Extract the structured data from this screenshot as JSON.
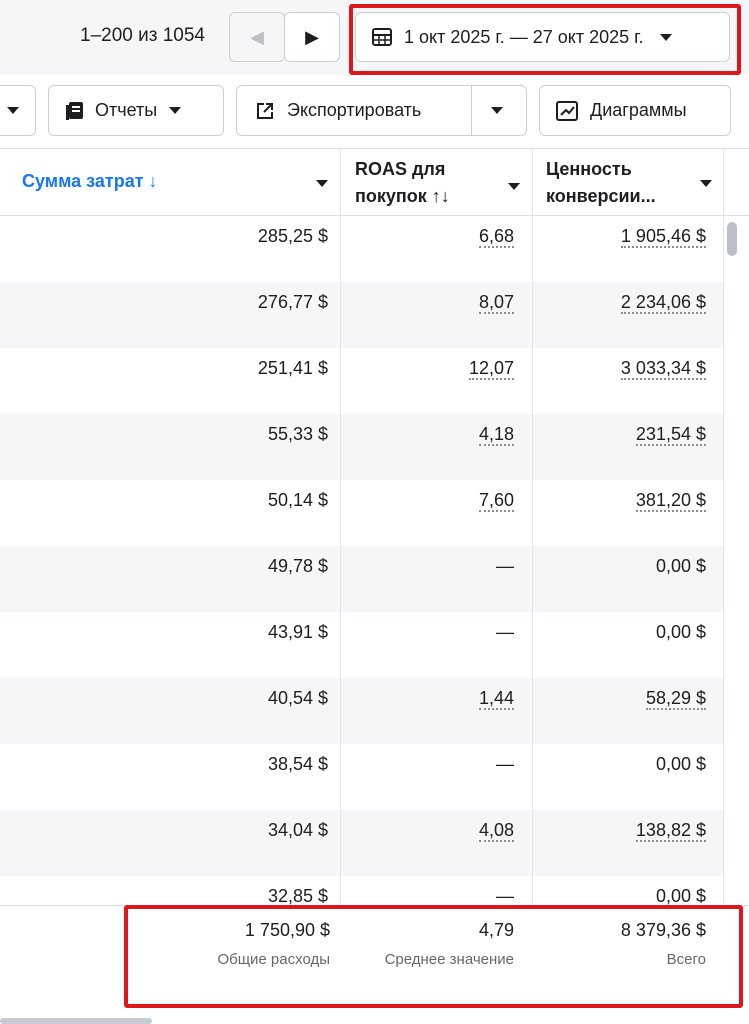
{
  "toolbar": {
    "pagination": "1–200 из 1054",
    "date_range": "1 окт 2025 г. — 27 окт 2025 г.",
    "buttons": [
      "Отчеты",
      "Экспортировать",
      "Диаграммы"
    ]
  },
  "table": {
    "headers": [
      "Сумма затрат ↓",
      "ROAS для покупок ↑↓",
      "Ценность конверсии..."
    ],
    "rows": [
      [
        "285,25 $",
        "6,68",
        "1 905,46 $"
      ],
      [
        "276,77 $",
        "8,07",
        "2 234,06 $"
      ],
      [
        "251,41 $",
        "12,07",
        "3 033,34 $"
      ],
      [
        "55,33 $",
        "4,18",
        "231,54 $"
      ],
      [
        "50,14 $",
        "7,60",
        "381,20 $"
      ],
      [
        "49,78 $",
        "—",
        "0,00 $"
      ],
      [
        "43,91 $",
        "—",
        "0,00 $"
      ],
      [
        "40,54 $",
        "1,44",
        "58,29 $"
      ],
      [
        "38,54 $",
        "—",
        "0,00 $"
      ],
      [
        "34,04 $",
        "4,08",
        "138,82 $"
      ],
      [
        "32,85 $",
        "—",
        "0,00 $"
      ]
    ],
    "totals": [
      {
        "value": "1 750,90 $",
        "label": "Общие расходы"
      },
      {
        "value": "4,79",
        "label": "Среднее значение"
      },
      {
        "value": "8 379,36 $",
        "label": "Всего"
      }
    ]
  }
}
